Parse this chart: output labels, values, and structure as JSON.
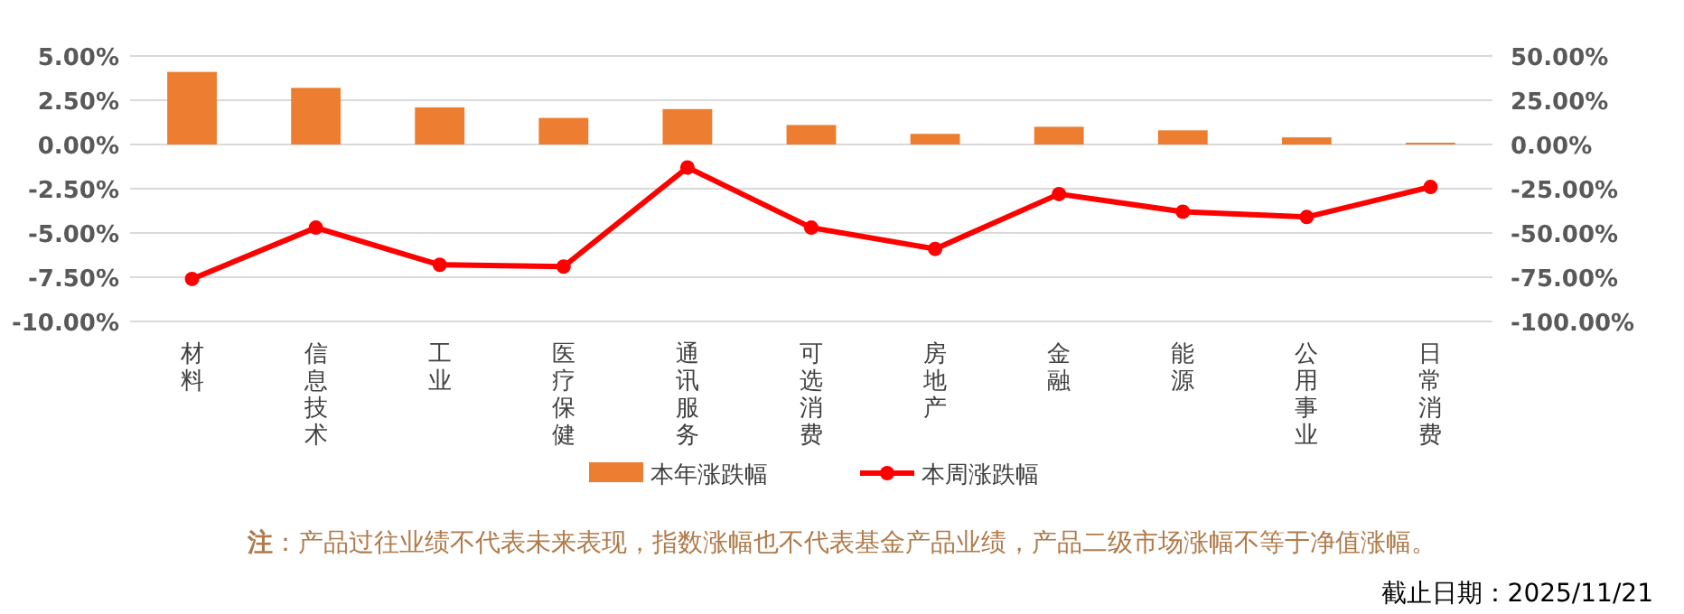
{
  "chart_data": {
    "type": "bar",
    "categories": [
      "材料",
      "信息技术",
      "工业",
      "医疗保健",
      "通讯服务",
      "可选消费",
      "房地产",
      "金融",
      "能源",
      "公用事业",
      "日常消费"
    ],
    "series": [
      {
        "name": "本年涨跌幅",
        "axis": "y2",
        "color": "#ed7d31",
        "values": [
          41,
          32,
          21,
          15,
          20,
          11,
          6,
          10,
          8,
          4,
          1
        ]
      },
      {
        "name": "本周涨跌幅",
        "type": "line",
        "color": "#ff0000",
        "marker": "circle",
        "values": [
          -7.6,
          -4.7,
          -6.8,
          -6.9,
          -1.3,
          -4.7,
          -5.9,
          -2.8,
          -3.8,
          -4.1,
          -2.4
        ]
      }
    ],
    "ylim": [
      -10,
      5
    ],
    "yticks": [
      {
        "value": 5,
        "label": "5.00%"
      },
      {
        "value": 2.5,
        "label": "2.50%"
      },
      {
        "value": 0,
        "label": "0.00%"
      },
      {
        "value": -2.5,
        "label": "-2.50%"
      },
      {
        "value": -5,
        "label": "-5.00%"
      },
      {
        "value": -7.5,
        "label": "-7.50%"
      },
      {
        "value": -10,
        "label": "-10.00%"
      }
    ],
    "y2lim": [
      -100,
      50
    ],
    "y2ticks": [
      {
        "value": 50,
        "label": "50.00%"
      },
      {
        "value": 25,
        "label": "25.00%"
      },
      {
        "value": 0,
        "label": "0.00%"
      },
      {
        "value": -25,
        "label": "-25.00%"
      },
      {
        "value": -50,
        "label": "-50.00%"
      },
      {
        "value": -75,
        "label": "-75.00%"
      },
      {
        "value": -100,
        "label": "-100.00%"
      }
    ],
    "grid": "y",
    "legend": "bottom",
    "annotations": [
      "**注**：产品过往业绩不代表未来表现，指数涨幅也不代表基金产品业绩，产品二级市场涨幅不等于净值涨幅。",
      "截止日期：2025/11/21"
    ]
  }
}
